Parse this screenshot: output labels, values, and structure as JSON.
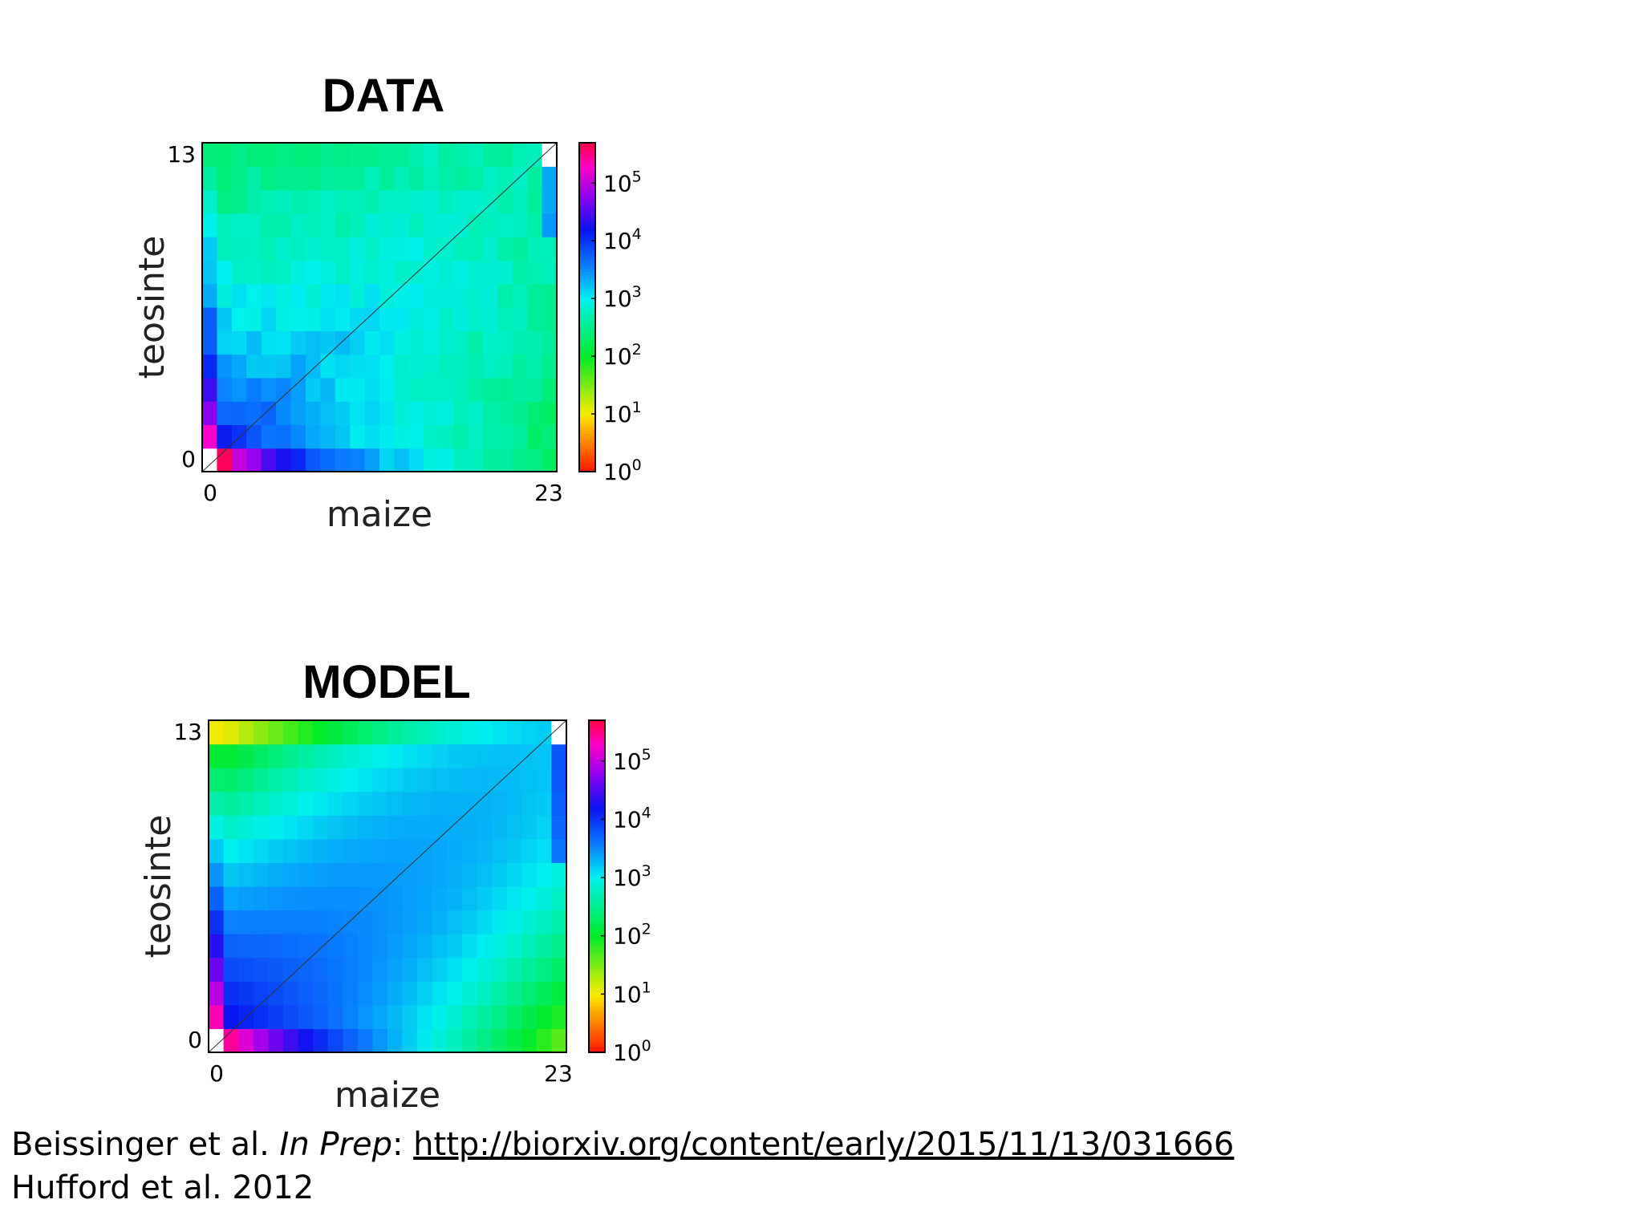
{
  "chart_data": [
    {
      "type": "heatmap",
      "title": "DATA",
      "xlabel": "maize",
      "ylabel": "teosinte",
      "xlim": [
        0,
        23
      ],
      "ylim": [
        0,
        13
      ],
      "x_tick_labels": [
        "0",
        "23"
      ],
      "y_tick_labels": [
        "0",
        "13"
      ],
      "color_scale": "log",
      "colorbar_ticks": [
        {
          "base": "10",
          "exp": "0",
          "value": 1
        },
        {
          "base": "10",
          "exp": "1",
          "value": 10
        },
        {
          "base": "10",
          "exp": "2",
          "value": 100
        },
        {
          "base": "10",
          "exp": "3",
          "value": 1000
        },
        {
          "base": "10",
          "exp": "4",
          "value": 10000
        },
        {
          "base": "10",
          "exp": "5",
          "value": 100000
        }
      ],
      "colorbar_range": [
        1,
        500000
      ],
      "diagonal_line": true,
      "empty_cells": [
        [
          0,
          0
        ],
        [
          23,
          13
        ]
      ],
      "approx_log10_at_corners": {
        "x0_y0": 5.6,
        "x23_y0": 2.4,
        "x0_y13": 2.3,
        "x23_y13": 4.5
      }
    },
    {
      "type": "heatmap",
      "title": "MODEL",
      "xlabel": "maize",
      "ylabel": "teosinte",
      "xlim": [
        0,
        23
      ],
      "ylim": [
        0,
        13
      ],
      "x_tick_labels": [
        "0",
        "23"
      ],
      "y_tick_labels": [
        "0",
        "13"
      ],
      "color_scale": "log",
      "colorbar_ticks": [
        {
          "base": "10",
          "exp": "0",
          "value": 1
        },
        {
          "base": "10",
          "exp": "1",
          "value": 10
        },
        {
          "base": "10",
          "exp": "2",
          "value": 100
        },
        {
          "base": "10",
          "exp": "3",
          "value": 1000
        },
        {
          "base": "10",
          "exp": "4",
          "value": 10000
        },
        {
          "base": "10",
          "exp": "5",
          "value": 100000
        }
      ],
      "colorbar_range": [
        1,
        500000
      ],
      "diagonal_line": true,
      "empty_cells": [
        [
          0,
          0
        ],
        [
          23,
          13
        ]
      ],
      "approx_log10_at_corners": {
        "x0_y0": 5.6,
        "x23_y0": 1.8,
        "x0_y13": 1.3,
        "x23_y13": 4.5
      }
    }
  ],
  "citation": {
    "line1_authors": "Beissinger et al. ",
    "line1_status": "In Prep",
    "line1_sep": ": ",
    "line1_url": "http://biorxiv.org/content/early/2015/11/13/031666",
    "line2": "Hufford et al. 2012"
  }
}
